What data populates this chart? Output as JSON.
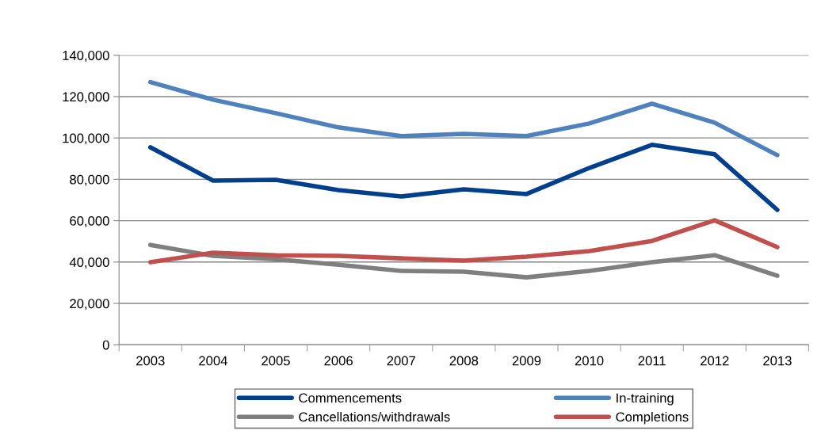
{
  "chart_data": {
    "type": "line",
    "categories": [
      "2003",
      "2004",
      "2005",
      "2006",
      "2007",
      "2008",
      "2009",
      "2010",
      "2011",
      "2012",
      "2013"
    ],
    "series": [
      {
        "name": "Commencements",
        "color": "#003f8c",
        "values": [
          95500,
          79400,
          79800,
          74800,
          71700,
          75200,
          72900,
          85500,
          96700,
          92100,
          65200
        ]
      },
      {
        "name": "In-training",
        "color": "#4f81bd",
        "values": [
          127000,
          118500,
          112000,
          105100,
          100900,
          102000,
          100900,
          107000,
          116600,
          107400,
          91700
        ]
      },
      {
        "name": "Cancellations/withdrawals",
        "color": "#7f7f7f",
        "values": [
          48300,
          43000,
          41400,
          38700,
          35700,
          35300,
          32600,
          35700,
          39900,
          43300,
          33400
        ]
      },
      {
        "name": "Completions",
        "color": "#c0504d",
        "values": [
          39900,
          44500,
          43300,
          43000,
          41800,
          40700,
          42600,
          45300,
          50200,
          60200,
          47200
        ]
      }
    ],
    "ylim": [
      0,
      140000
    ],
    "yticks": [
      0,
      {
        "value": 20000,
        "label": "20,000"
      },
      {
        "value": 40000,
        "label": "40,000"
      },
      {
        "value": 60000,
        "label": "60,000"
      },
      {
        "value": 80000,
        "label": "80,000"
      },
      {
        "value": 100000,
        "label": "100,000"
      },
      {
        "value": 120000,
        "label": "120,000"
      },
      {
        "value": 140000,
        "label": "140,000"
      }
    ],
    "grid": "y",
    "legend": "bottom",
    "marker": "none",
    "line_style": "solid"
  }
}
